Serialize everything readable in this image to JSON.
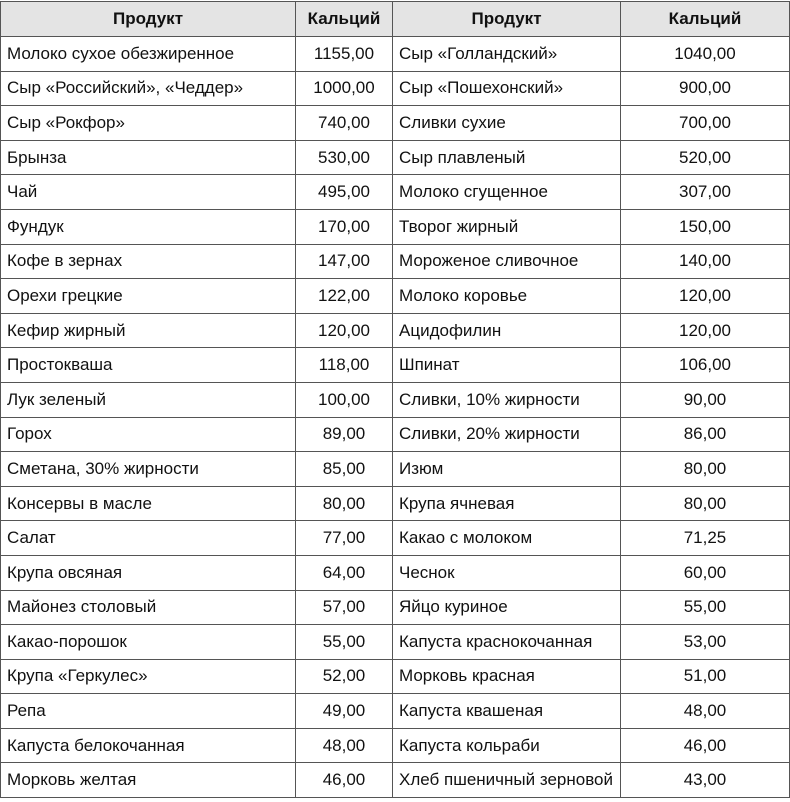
{
  "table": {
    "header": [
      "Продукт",
      "Кальций",
      "Продукт",
      "Кальций"
    ],
    "rows": [
      [
        "Молоко сухое обезжиренное",
        "1155,00",
        "Сыр «Голландский»",
        "1040,00"
      ],
      [
        "Сыр «Российский», «Чеддер»",
        "1000,00",
        "Сыр «Пошехонский»",
        "900,00"
      ],
      [
        "Сыр «Рокфор»",
        "740,00",
        "Сливки сухие",
        "700,00"
      ],
      [
        "Брынза",
        "530,00",
        "Сыр плавленый",
        "520,00"
      ],
      [
        "Чай",
        "495,00",
        "Молоко сгущенное",
        "307,00"
      ],
      [
        "Фундук",
        "170,00",
        "Творог жирный",
        "150,00"
      ],
      [
        "Кофе в зернах",
        "147,00",
        "Мороженое сливочное",
        "140,00"
      ],
      [
        "Орехи грецкие",
        "122,00",
        "Молоко коровье",
        "120,00"
      ],
      [
        "Кефир жирный",
        "120,00",
        "Ацидофилин",
        "120,00"
      ],
      [
        "Простокваша",
        "118,00",
        "Шпинат",
        "106,00"
      ],
      [
        "Лук зеленый",
        "100,00",
        "Сливки, 10% жирности",
        "90,00"
      ],
      [
        "Горох",
        "89,00",
        "Сливки, 20% жирности",
        "86,00"
      ],
      [
        "Сметана, 30% жирности",
        "85,00",
        "Изюм",
        "80,00"
      ],
      [
        "Консервы в масле",
        "80,00",
        "Крупа ячневая",
        "80,00"
      ],
      [
        "Салат",
        "77,00",
        "Какао с молоком",
        "71,25"
      ],
      [
        "Крупа овсяная",
        "64,00",
        "Чеснок",
        "60,00"
      ],
      [
        "Майонез столовый",
        "57,00",
        "Яйцо куриное",
        "55,00"
      ],
      [
        "Какао-порошок",
        "55,00",
        "Капуста краснокочанная",
        "53,00"
      ],
      [
        "Крупа «Геркулес»",
        "52,00",
        "Морковь красная",
        "51,00"
      ],
      [
        "Репа",
        "49,00",
        "Капуста квашеная",
        "48,00"
      ],
      [
        "Капуста белокочанная",
        "48,00",
        "Капуста кольраби",
        "46,00"
      ],
      [
        "Морковь желтая",
        "46,00",
        "Хлеб пшеничный зерновой",
        "43,00"
      ]
    ]
  }
}
